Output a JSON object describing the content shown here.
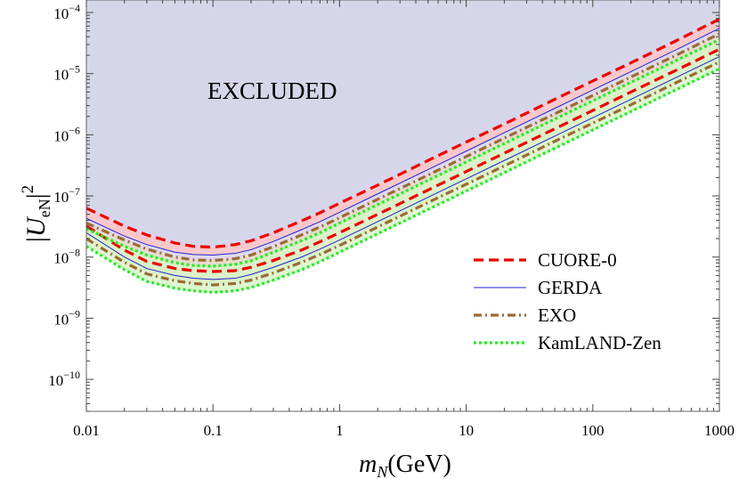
{
  "chart_data": {
    "type": "line",
    "xscale": "log",
    "yscale": "log",
    "xlim": [
      0.01,
      1000
    ],
    "ylim": [
      3e-11,
      0.00016
    ],
    "x_ticks": [
      "0.01",
      "0.1",
      "1",
      "10",
      "100",
      "1000"
    ],
    "y_ticks": [
      {
        "base": "10",
        "exp": "−4",
        "value": 0.0001
      },
      {
        "base": "10",
        "exp": "−5",
        "value": 1e-05
      },
      {
        "base": "10",
        "exp": "−6",
        "value": 1e-06
      },
      {
        "base": "10",
        "exp": "−7",
        "value": 1e-07
      },
      {
        "base": "10",
        "exp": "−8",
        "value": 1e-08
      },
      {
        "base": "10",
        "exp": "−9",
        "value": 1e-09
      },
      {
        "base": "10",
        "exp": "−10",
        "value": 1e-10
      }
    ],
    "xlabel": {
      "main": "m",
      "sub": "N",
      "rest": "(GeV)"
    },
    "ylabel": {
      "pre": "|",
      "main": "U",
      "sub": "eN",
      "post": "|",
      "sup": "2"
    },
    "annotation": "EXCLUDED",
    "legend_position": "lower-right",
    "excluded_region_color": "#d6d6ea",
    "x_points": [
      0.01,
      0.02,
      0.03,
      0.05,
      0.07,
      0.1,
      0.15,
      0.2,
      0.3,
      0.5,
      0.7,
      1,
      2,
      5,
      10,
      20,
      50,
      100,
      200,
      500,
      1000
    ],
    "series": [
      {
        "name": "CUORE-0",
        "color": "#ee0000",
        "style": "dashed",
        "fill": "#f8c8cc",
        "upper": [
          6.3e-08,
          3.2e-08,
          2.3e-08,
          1.7e-08,
          1.5e-08,
          1.45e-08,
          1.6e-08,
          1.85e-08,
          2.5e-08,
          3.9e-08,
          5.3e-08,
          7.6e-08,
          1.5e-07,
          3.8e-07,
          7.6e-07,
          1.5e-06,
          3.8e-06,
          7.6e-06,
          1.5e-05,
          3.8e-05,
          7.8e-05
        ],
        "lower": [
          3.2e-08,
          1.3e-08,
          8.5e-09,
          6.5e-09,
          6e-09,
          5.8e-09,
          6e-09,
          6.8e-09,
          8.8e-09,
          1.3e-08,
          1.78e-08,
          2.5e-08,
          5e-08,
          1.25e-07,
          2.5e-07,
          5e-07,
          1.25e-06,
          2.5e-06,
          5e-06,
          1.25e-05,
          2.5e-05
        ]
      },
      {
        "name": "GERDA",
        "color": "#2222cc",
        "style": "solid",
        "fill": "#dcdcf2",
        "upper": [
          4.3e-08,
          2.2e-08,
          1.6e-08,
          1.2e-08,
          1.1e-08,
          1.08e-08,
          1.15e-08,
          1.32e-08,
          1.8e-08,
          2.8e-08,
          3.8e-08,
          5.4e-08,
          1.08e-07,
          2.7e-07,
          5.4e-07,
          1.08e-06,
          2.7e-06,
          5.4e-06,
          1.08e-05,
          2.7e-05,
          5.5e-05
        ],
        "lower": [
          2.5e-08,
          1e-08,
          6.5e-09,
          5e-09,
          4.5e-09,
          4.3e-09,
          4.5e-09,
          5.2e-09,
          6.8e-09,
          1e-08,
          1.35e-08,
          1.9e-08,
          3.8e-08,
          9.5e-08,
          1.9e-07,
          3.8e-07,
          9.5e-07,
          1.9e-06,
          3.8e-06,
          9.5e-06,
          1.9e-05
        ]
      },
      {
        "name": "EXO",
        "color": "#9c6a36",
        "style": "dashdot",
        "fill": "#e8dcc8",
        "upper": [
          3.6e-08,
          1.9e-08,
          1.35e-08,
          1e-08,
          9e-09,
          8.8e-09,
          9.4e-09,
          1.08e-08,
          1.48e-08,
          2.3e-08,
          3.1e-08,
          4.4e-08,
          8.8e-08,
          2.2e-07,
          4.4e-07,
          8.8e-07,
          2.2e-06,
          4.4e-06,
          8.8e-06,
          2.2e-05,
          4.5e-05
        ],
        "lower": [
          2e-08,
          8.2e-09,
          5.3e-09,
          4.1e-09,
          3.7e-09,
          3.5e-09,
          3.7e-09,
          4.2e-09,
          5.5e-09,
          8.2e-09,
          1.1e-08,
          1.55e-08,
          3.1e-08,
          7.8e-08,
          1.55e-07,
          3.1e-07,
          7.8e-07,
          1.55e-06,
          3.1e-06,
          7.8e-06,
          1.55e-05
        ]
      },
      {
        "name": "KamLAND-Zen",
        "color": "#22ee22",
        "style": "dotted",
        "fill": "#d8f5c8",
        "upper": [
          2.9e-08,
          1.5e-08,
          1.08e-08,
          8.1e-09,
          7.3e-09,
          7.1e-09,
          7.6e-09,
          8.7e-09,
          1.2e-08,
          1.85e-08,
          2.5e-08,
          3.6e-08,
          7.2e-08,
          1.8e-07,
          3.6e-07,
          7.2e-07,
          1.8e-06,
          3.6e-06,
          7.2e-06,
          1.8e-05,
          3.6e-05
        ],
        "lower": [
          1.5e-08,
          6.2e-09,
          4e-09,
          3.1e-09,
          2.8e-09,
          2.65e-09,
          2.8e-09,
          3.2e-09,
          4.2e-09,
          6.2e-09,
          8.4e-09,
          1.2e-08,
          2.4e-08,
          6e-08,
          1.2e-07,
          2.4e-07,
          6e-07,
          1.2e-06,
          2.4e-06,
          6e-06,
          1.2e-05
        ]
      }
    ]
  }
}
